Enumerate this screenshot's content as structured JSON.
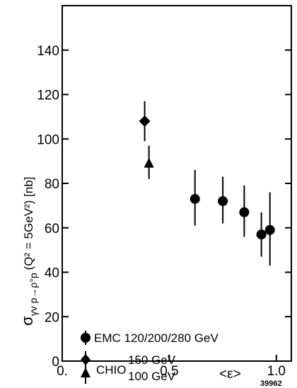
{
  "chart_data": {
    "type": "scatter",
    "title": "",
    "xlabel": "<ε>",
    "ylabel": "σ",
    "ylabel_subscript": "γv p→ρ°p",
    "ylabel_suffix": "(Q² = 5GeV²) [nb]",
    "xlim": [
      0.0,
      1.07
    ],
    "ylim": [
      0,
      160
    ],
    "x_ticks": [
      0.0,
      0.5,
      1.0
    ],
    "x_tick_labels": [
      "0.",
      "0.5",
      "1.0"
    ],
    "y_ticks": [
      0,
      20,
      40,
      60,
      80,
      100,
      120,
      140
    ],
    "y_tick_labels": [
      "0",
      "20",
      "40",
      "60",
      "80",
      "100",
      "120",
      "140"
    ],
    "grid": false,
    "legend_position": "bottom-left",
    "series": [
      {
        "name": "EMC 120/200/280 GeV",
        "marker": "circle",
        "points": [
          {
            "x": 0.62,
            "y": 73,
            "ylow": 61,
            "yhigh": 86
          },
          {
            "x": 0.75,
            "y": 72,
            "ylow": 62,
            "yhigh": 83
          },
          {
            "x": 0.85,
            "y": 67,
            "ylow": 56,
            "yhigh": 79
          },
          {
            "x": 0.93,
            "y": 57,
            "ylow": 47,
            "yhigh": 67
          },
          {
            "x": 0.97,
            "y": 59,
            "ylow": 43,
            "yhigh": 76
          }
        ]
      },
      {
        "name": "CHIO 150 GeV",
        "marker": "diamond",
        "points": [
          {
            "x": 0.385,
            "y": 108,
            "ylow": 99,
            "yhigh": 117
          }
        ]
      },
      {
        "name": "CHIO 100 GeV",
        "marker": "triangle",
        "points": [
          {
            "x": 0.405,
            "y": 89,
            "ylow": 82,
            "yhigh": 97
          }
        ]
      }
    ],
    "legend": {
      "emc": "EMC 120/200/280 GeV",
      "chio": "CHIO",
      "chio_150": "150 GeV",
      "chio_100": "100 GeV"
    },
    "figure_code": "39962"
  }
}
